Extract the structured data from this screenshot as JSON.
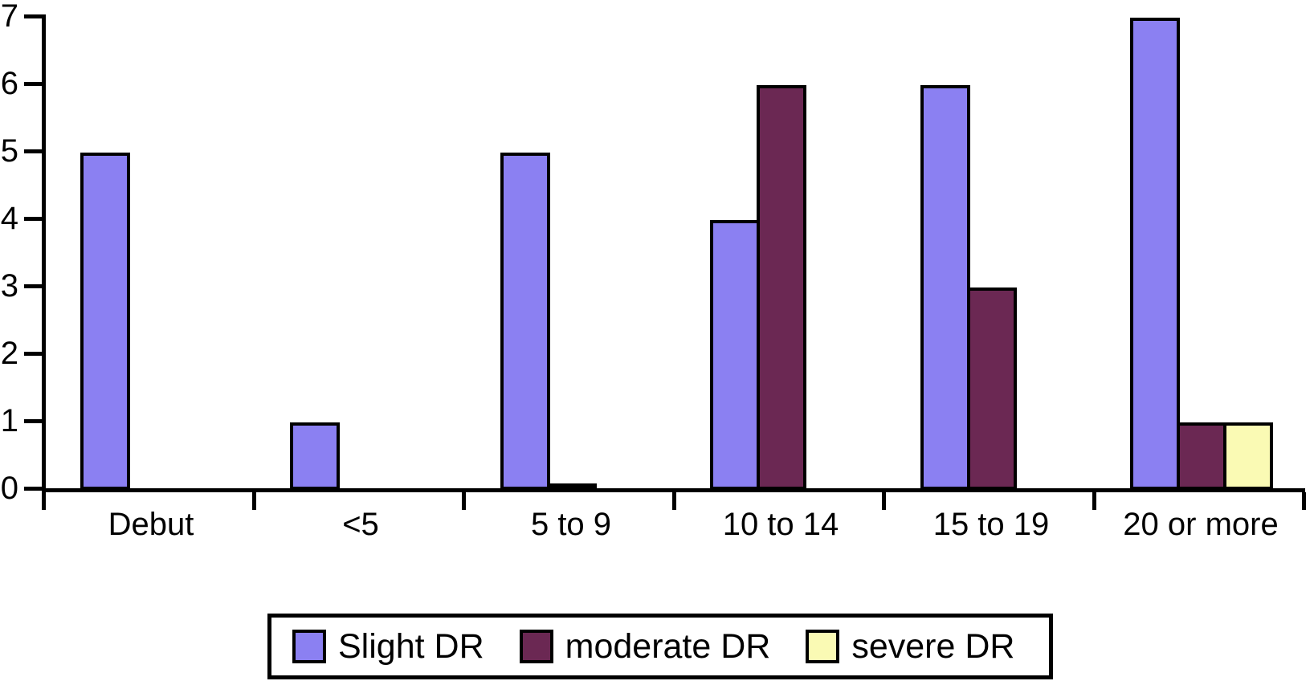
{
  "chart_data": {
    "type": "bar",
    "title": "",
    "xlabel": "",
    "ylabel": "",
    "categories": [
      "Debut",
      "<5",
      "5 to 9",
      "10 to 14",
      "15 to 19",
      "20 or more"
    ],
    "series": [
      {
        "name": "Slight DR",
        "color": "#8b80f2",
        "values": [
          5,
          1,
          5,
          4,
          6,
          7
        ]
      },
      {
        "name": "moderate DR",
        "color": "#6b2853",
        "values": [
          0,
          0,
          0.05,
          6,
          3,
          1
        ]
      },
      {
        "name": "severe DR",
        "color": "#fafab4",
        "values": [
          0,
          0,
          0,
          0,
          0,
          1
        ]
      }
    ],
    "ylim": [
      0,
      7
    ],
    "yticks": [
      "0",
      "1",
      "2",
      "3",
      "4",
      "5",
      "6",
      "7"
    ],
    "grid": false,
    "legend_position": "bottom-center",
    "bar_outline_color": "#000000",
    "axis_color": "#000000"
  }
}
